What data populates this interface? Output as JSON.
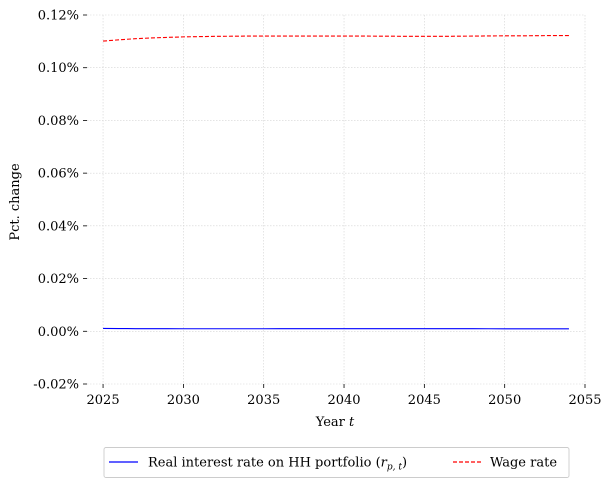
{
  "chart_data": {
    "type": "line",
    "title": "",
    "xlabel": "Year",
    "xlabel_var": "t",
    "ylabel": "Pct. change",
    "xlim": [
      2024,
      2055
    ],
    "ylim": [
      -0.02,
      0.12
    ],
    "x_ticks": [
      2025,
      2030,
      2035,
      2040,
      2045,
      2050,
      2055
    ],
    "y_ticks": [
      -0.02,
      0.0,
      0.02,
      0.04,
      0.06,
      0.08,
      0.1,
      0.12
    ],
    "y_tick_labels": [
      "-0.02%",
      "0.00%",
      "0.02%",
      "0.04%",
      "0.06%",
      "0.08%",
      "0.10%",
      "0.12%"
    ],
    "grid": true,
    "legend_placement": "bottom-center",
    "series": [
      {
        "name": "Real interest rate on HH portfolio",
        "name_math_base": "r",
        "name_math_sub": "p, t",
        "color": "#0000ff",
        "style": "solid",
        "x": [
          2025,
          2026,
          2027,
          2028,
          2029,
          2030,
          2031,
          2032,
          2033,
          2034,
          2035,
          2036,
          2037,
          2038,
          2039,
          2040,
          2041,
          2042,
          2043,
          2044,
          2045,
          2046,
          2047,
          2048,
          2049,
          2050,
          2051,
          2052,
          2053,
          2054
        ],
        "values": [
          0.0011,
          0.00105,
          0.001,
          0.00098,
          0.00097,
          0.00096,
          0.00096,
          0.00096,
          0.00096,
          0.00096,
          0.00096,
          0.00097,
          0.00097,
          0.00098,
          0.00098,
          0.00099,
          0.00099,
          0.001,
          0.001,
          0.001,
          0.001,
          0.00099,
          0.00098,
          0.00097,
          0.00096,
          0.00095,
          0.00095,
          0.00094,
          0.00093,
          0.00093
        ]
      },
      {
        "name": "Wage rate",
        "color": "#ff0000",
        "style": "dashed",
        "x": [
          2025,
          2026,
          2027,
          2028,
          2029,
          2030,
          2031,
          2032,
          2033,
          2034,
          2035,
          2036,
          2037,
          2038,
          2039,
          2040,
          2041,
          2042,
          2043,
          2044,
          2045,
          2046,
          2047,
          2048,
          2049,
          2050,
          2051,
          2052,
          2053,
          2054
        ],
        "values": [
          0.1101,
          0.1106,
          0.111,
          0.1113,
          0.1115,
          0.1117,
          0.1118,
          0.1119,
          0.11195,
          0.112,
          0.112,
          0.112,
          0.112,
          0.112,
          0.112,
          0.112,
          0.112,
          0.11198,
          0.11195,
          0.11192,
          0.1119,
          0.1119,
          0.11195,
          0.112,
          0.11205,
          0.1121,
          0.1121,
          0.11215,
          0.1122,
          0.1122
        ]
      }
    ]
  }
}
